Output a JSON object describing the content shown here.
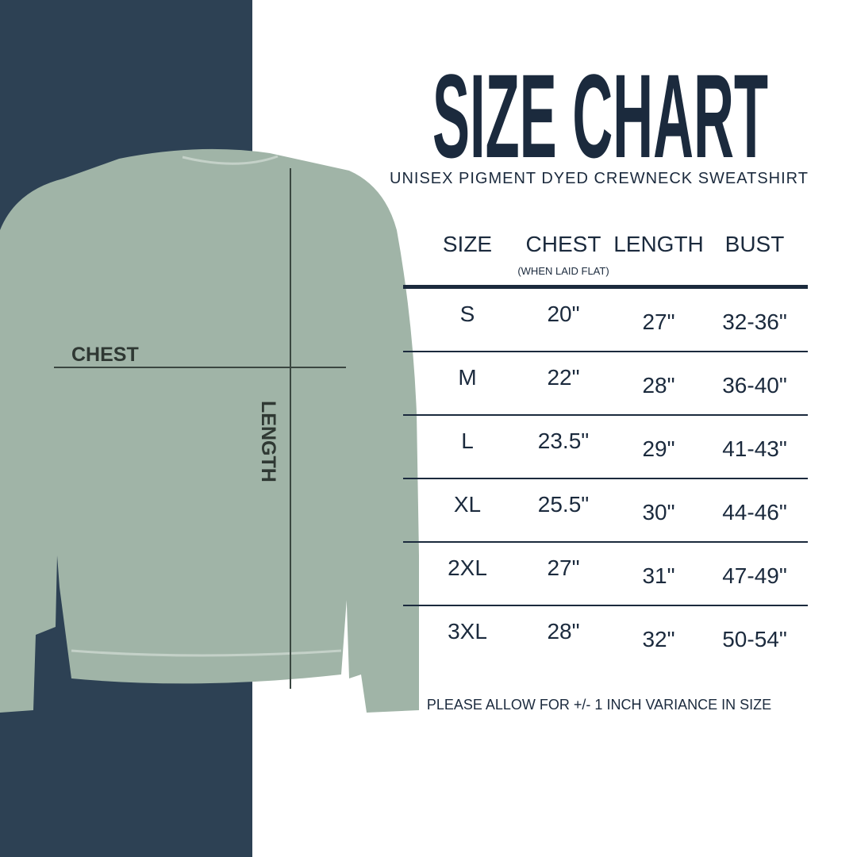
{
  "title": "SIZE CHART",
  "subtitle": "UNISEX PIGMENT DYED CREWNECK SWEATSHIRT",
  "diagram": {
    "chest_label": "CHEST",
    "length_label": "LENGTH",
    "garment_color": "#9fb3a6"
  },
  "table": {
    "headers": [
      "SIZE",
      "CHEST",
      "LENGTH",
      "BUST"
    ],
    "chest_note": "(WHEN LAID FLAT)",
    "rows": [
      [
        "S",
        "20\"",
        "27\"",
        "32-36\""
      ],
      [
        "M",
        "22\"",
        "28\"",
        "36-40\""
      ],
      [
        "L",
        "23.5\"",
        "29\"",
        "41-43\""
      ],
      [
        "XL",
        "25.5\"",
        "30\"",
        "44-46\""
      ],
      [
        "2XL",
        "27\"",
        "31\"",
        "47-49\""
      ],
      [
        "3XL",
        "28\"",
        "32\"",
        "50-54\""
      ]
    ]
  },
  "note": "PLEASE ALLOW FOR +/- 1 INCH VARIANCE IN SIZE",
  "colors": {
    "navy": "#2d4154",
    "text": "#1b2a3d"
  }
}
